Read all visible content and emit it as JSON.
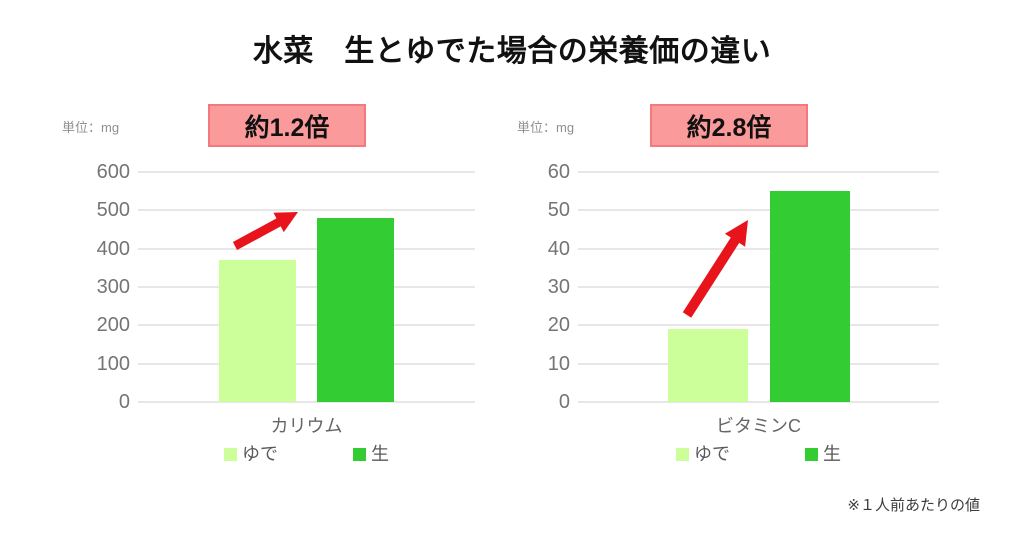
{
  "title": "水菜　生とゆでた場合の栄養価の違い",
  "footnote": "※１人前あたりの値",
  "theme": {
    "title_text": "#111111",
    "badge_bg": "#fa9a9a",
    "badge_border": "#f4787e",
    "arrow_red": "#e8141c",
    "grid_line": "#e7e7e7",
    "axis_text": "#757575",
    "category_text": "#666666",
    "legend_text": "#595959",
    "unit_text": "#8f8f8f",
    "note_text": "#3d3d3d",
    "bar_boiled_green": "#ccff99",
    "bar_raw_green": "#33cc33"
  },
  "chart_data": [
    {
      "type": "bar",
      "title": "カリウム",
      "unit_label": "単位：mg",
      "ratio_badge": "約1.2倍",
      "categories": [
        "ゆで",
        "生"
      ],
      "values": [
        370,
        480
      ],
      "bar_colors": [
        "#ccff99",
        "#33cc33"
      ],
      "ylim": [
        0,
        600
      ],
      "ytick_step": 100,
      "grid": true,
      "legend_position": "bottom"
    },
    {
      "type": "bar",
      "title": "ビタミンC",
      "unit_label": "単位：mg",
      "ratio_badge": "約2.8倍",
      "categories": [
        "ゆで",
        "生"
      ],
      "values": [
        19,
        55
      ],
      "bar_colors": [
        "#ccff99",
        "#33cc33"
      ],
      "ylim": [
        0,
        60
      ],
      "ytick_step": 10,
      "grid": true,
      "legend_position": "bottom"
    }
  ]
}
